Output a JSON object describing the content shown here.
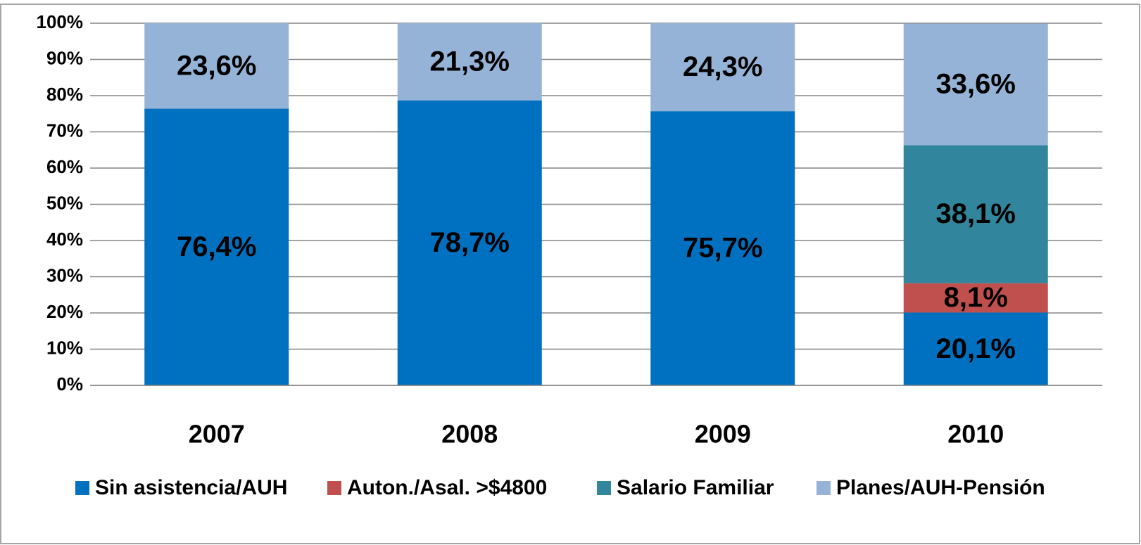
{
  "chart_data": {
    "type": "stacked_bar",
    "categories": [
      "2007",
      "2008",
      "2009",
      "2010"
    ],
    "series": [
      {
        "name": "Sin asistencia/AUH",
        "color": "#0070c0",
        "values": [
          76.4,
          78.7,
          75.7,
          20.1
        ],
        "value_labels": [
          "76,4%",
          "78,7%",
          "75,7%",
          "20,1%"
        ]
      },
      {
        "name": "Auton./Asal. >$4800",
        "color": "#c0504d",
        "values": [
          null,
          null,
          null,
          8.1
        ],
        "value_labels": [
          null,
          null,
          null,
          "8,1%"
        ]
      },
      {
        "name": "Salario Familiar",
        "color": "#31859c",
        "values": [
          null,
          null,
          null,
          38.1
        ],
        "value_labels": [
          null,
          null,
          null,
          "38,1%"
        ]
      },
      {
        "name": "Planes/AUH-Pensión",
        "color": "#95b3d7",
        "values": [
          23.6,
          21.3,
          24.3,
          33.6
        ],
        "value_labels": [
          "23,6%",
          "21,3%",
          "24,3%",
          "33,6%"
        ]
      }
    ],
    "ylim": [
      0,
      100
    ],
    "yticks": [
      {
        "value": 0,
        "label": "0%"
      },
      {
        "value": 10,
        "label": "10%"
      },
      {
        "value": 20,
        "label": "20%"
      },
      {
        "value": 30,
        "label": "30%"
      },
      {
        "value": 40,
        "label": "40%"
      },
      {
        "value": 50,
        "label": "50%"
      },
      {
        "value": 60,
        "label": "60%"
      },
      {
        "value": 70,
        "label": "70%"
      },
      {
        "value": 80,
        "label": "80%"
      },
      {
        "value": 90,
        "label": "90%"
      },
      {
        "value": 100,
        "label": "100%"
      }
    ],
    "grid": true,
    "legend": "bottom"
  }
}
